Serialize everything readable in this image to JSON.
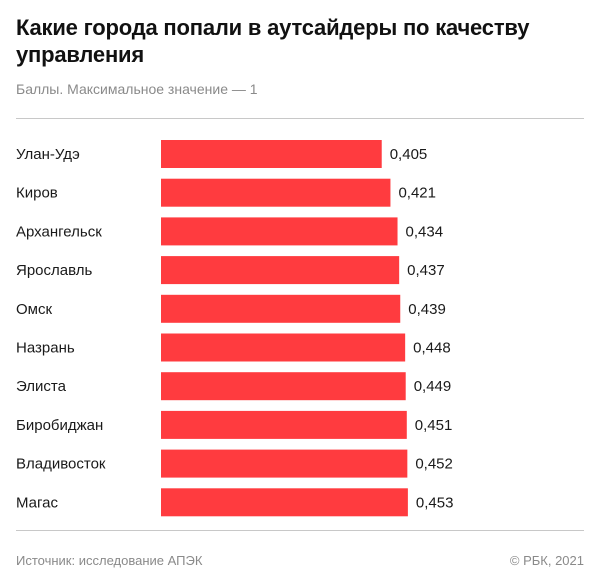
{
  "header": {
    "title": "Какие города попали в аутсайдеры по качеству управления",
    "subtitle": "Баллы. Максимальное значение — 1"
  },
  "footer": {
    "source": "Источник: исследование АПЭК",
    "copyright": "© РБК, 2021"
  },
  "colors": {
    "bar": "#ff3b3f"
  },
  "chart_data": {
    "type": "bar",
    "orientation": "horizontal",
    "title": "Какие города попали в аутсайдеры по качеству управления",
    "subtitle": "Баллы. Максимальное значение — 1",
    "categories": [
      "Улан-Удэ",
      "Киров",
      "Архангельск",
      "Ярославль",
      "Омск",
      "Назрань",
      "Элиста",
      "Биробиджан",
      "Владивосток",
      "Магас"
    ],
    "values": [
      0.405,
      0.421,
      0.434,
      0.437,
      0.439,
      0.448,
      0.449,
      0.451,
      0.452,
      0.453
    ],
    "value_labels": [
      "0,405",
      "0,421",
      "0,434",
      "0,437",
      "0,439",
      "0,448",
      "0,449",
      "0,451",
      "0,452",
      "0,453"
    ],
    "grid": false,
    "legend": "none"
  }
}
